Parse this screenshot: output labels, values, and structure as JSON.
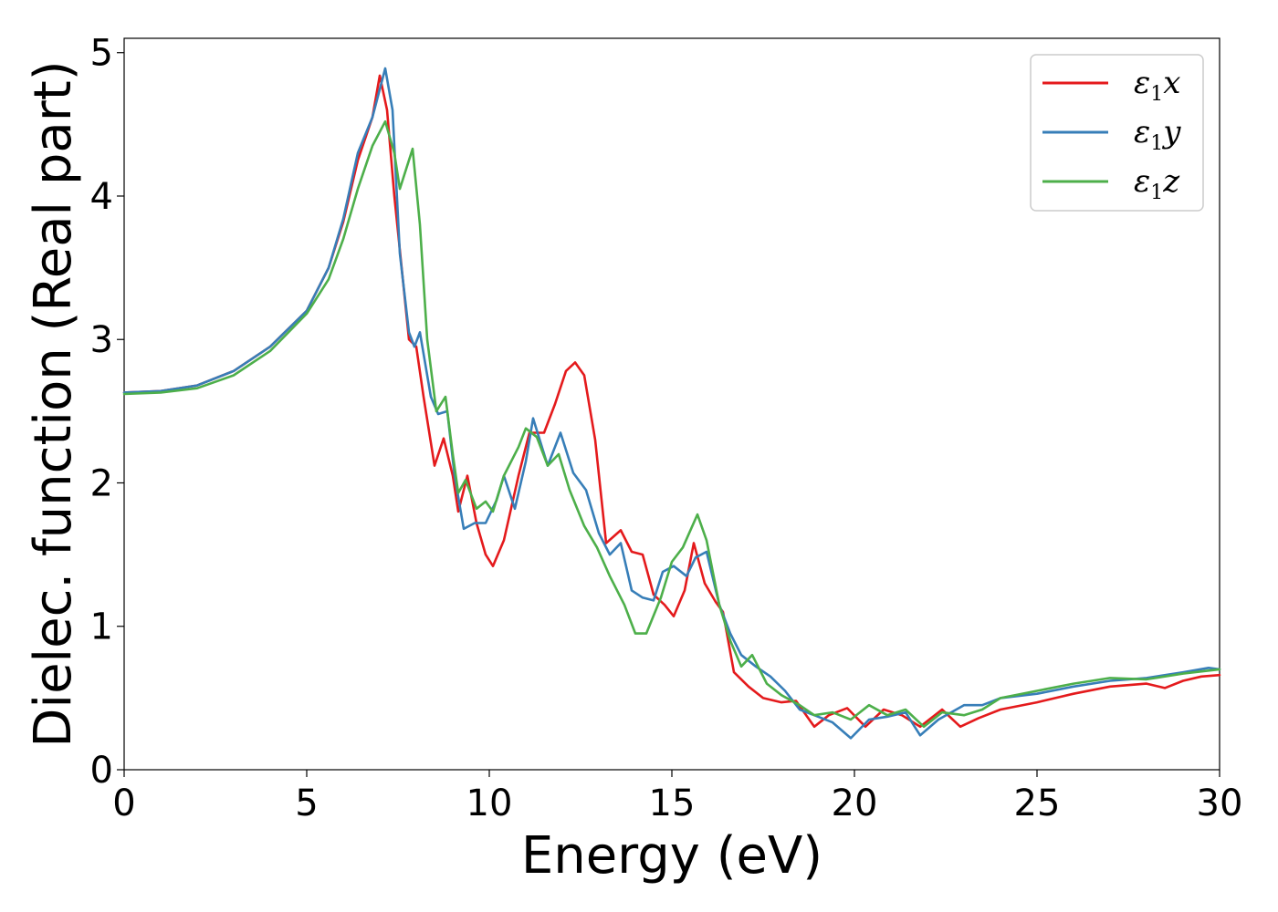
{
  "chart_data": {
    "type": "line",
    "title": "",
    "xlabel": "Energy (eV)",
    "ylabel": "Dielec. function (Real part)",
    "xlim": [
      0,
      30
    ],
    "ylim": [
      0,
      5.1
    ],
    "x_ticks": [
      0,
      5,
      10,
      15,
      20,
      25,
      30
    ],
    "y_ticks": [
      0,
      1,
      2,
      3,
      4,
      5
    ],
    "grid": false,
    "legend_position": "top-right",
    "series": [
      {
        "name": "ε1x",
        "legend_symbol": "ε",
        "legend_subscript": "1",
        "legend_suffix": "x",
        "color": "#e41a1c",
        "points": [
          [
            0,
            2.63
          ],
          [
            1,
            2.64
          ],
          [
            2,
            2.68
          ],
          [
            3,
            2.78
          ],
          [
            4,
            2.95
          ],
          [
            5,
            3.2
          ],
          [
            5.6,
            3.5
          ],
          [
            6,
            3.82
          ],
          [
            6.4,
            4.25
          ],
          [
            6.8,
            4.55
          ],
          [
            7.0,
            4.84
          ],
          [
            7.2,
            4.6
          ],
          [
            7.4,
            4.0
          ],
          [
            7.6,
            3.5
          ],
          [
            7.8,
            3.0
          ],
          [
            8.0,
            2.95
          ],
          [
            8.2,
            2.6
          ],
          [
            8.5,
            2.12
          ],
          [
            8.75,
            2.31
          ],
          [
            9.0,
            2.05
          ],
          [
            9.15,
            1.8
          ],
          [
            9.4,
            2.05
          ],
          [
            9.65,
            1.72
          ],
          [
            9.9,
            1.5
          ],
          [
            10.1,
            1.42
          ],
          [
            10.4,
            1.6
          ],
          [
            10.8,
            2.05
          ],
          [
            11.1,
            2.35
          ],
          [
            11.5,
            2.35
          ],
          [
            11.8,
            2.55
          ],
          [
            12.1,
            2.78
          ],
          [
            12.35,
            2.84
          ],
          [
            12.6,
            2.75
          ],
          [
            12.9,
            2.3
          ],
          [
            13.2,
            1.58
          ],
          [
            13.6,
            1.67
          ],
          [
            13.9,
            1.52
          ],
          [
            14.2,
            1.5
          ],
          [
            14.5,
            1.22
          ],
          [
            14.8,
            1.15
          ],
          [
            15.05,
            1.07
          ],
          [
            15.35,
            1.25
          ],
          [
            15.6,
            1.58
          ],
          [
            15.9,
            1.3
          ],
          [
            16.2,
            1.17
          ],
          [
            16.4,
            1.1
          ],
          [
            16.7,
            0.68
          ],
          [
            17.1,
            0.58
          ],
          [
            17.5,
            0.5
          ],
          [
            18.0,
            0.47
          ],
          [
            18.4,
            0.48
          ],
          [
            18.9,
            0.3
          ],
          [
            19.3,
            0.38
          ],
          [
            19.8,
            0.43
          ],
          [
            20.3,
            0.3
          ],
          [
            20.8,
            0.42
          ],
          [
            21.3,
            0.38
          ],
          [
            21.8,
            0.3
          ],
          [
            22.4,
            0.42
          ],
          [
            22.9,
            0.3
          ],
          [
            23.4,
            0.36
          ],
          [
            24,
            0.42
          ],
          [
            25,
            0.47
          ],
          [
            26,
            0.53
          ],
          [
            27,
            0.58
          ],
          [
            28,
            0.6
          ],
          [
            28.5,
            0.57
          ],
          [
            29,
            0.62
          ],
          [
            29.5,
            0.65
          ],
          [
            30,
            0.66
          ]
        ]
      },
      {
        "name": "ε1y",
        "legend_symbol": "ε",
        "legend_subscript": "1",
        "legend_suffix": "y",
        "color": "#377eb8",
        "points": [
          [
            0,
            2.63
          ],
          [
            1,
            2.64
          ],
          [
            2,
            2.68
          ],
          [
            3,
            2.78
          ],
          [
            4,
            2.95
          ],
          [
            5,
            3.2
          ],
          [
            5.6,
            3.5
          ],
          [
            6,
            3.84
          ],
          [
            6.4,
            4.3
          ],
          [
            6.8,
            4.55
          ],
          [
            7.15,
            4.89
          ],
          [
            7.35,
            4.6
          ],
          [
            7.55,
            3.6
          ],
          [
            7.8,
            3.05
          ],
          [
            7.95,
            2.95
          ],
          [
            8.1,
            3.05
          ],
          [
            8.4,
            2.6
          ],
          [
            8.6,
            2.48
          ],
          [
            8.85,
            2.5
          ],
          [
            9.05,
            2.05
          ],
          [
            9.3,
            1.68
          ],
          [
            9.6,
            1.72
          ],
          [
            9.9,
            1.72
          ],
          [
            10.2,
            1.88
          ],
          [
            10.4,
            2.05
          ],
          [
            10.7,
            1.82
          ],
          [
            11.0,
            2.15
          ],
          [
            11.2,
            2.45
          ],
          [
            11.6,
            2.12
          ],
          [
            11.95,
            2.35
          ],
          [
            12.3,
            2.07
          ],
          [
            12.65,
            1.95
          ],
          [
            13.0,
            1.65
          ],
          [
            13.3,
            1.5
          ],
          [
            13.6,
            1.58
          ],
          [
            13.9,
            1.25
          ],
          [
            14.2,
            1.2
          ],
          [
            14.5,
            1.18
          ],
          [
            14.75,
            1.38
          ],
          [
            15.05,
            1.42
          ],
          [
            15.4,
            1.35
          ],
          [
            15.65,
            1.48
          ],
          [
            15.95,
            1.52
          ],
          [
            16.3,
            1.15
          ],
          [
            16.6,
            0.95
          ],
          [
            16.9,
            0.8
          ],
          [
            17.3,
            0.72
          ],
          [
            17.7,
            0.65
          ],
          [
            18.1,
            0.55
          ],
          [
            18.5,
            0.42
          ],
          [
            18.9,
            0.38
          ],
          [
            19.4,
            0.33
          ],
          [
            19.9,
            0.22
          ],
          [
            20.4,
            0.35
          ],
          [
            20.9,
            0.37
          ],
          [
            21.4,
            0.4
          ],
          [
            21.8,
            0.24
          ],
          [
            22.3,
            0.35
          ],
          [
            23,
            0.45
          ],
          [
            23.5,
            0.45
          ],
          [
            24,
            0.5
          ],
          [
            25,
            0.53
          ],
          [
            26,
            0.58
          ],
          [
            27,
            0.62
          ],
          [
            28,
            0.64
          ],
          [
            29,
            0.68
          ],
          [
            29.7,
            0.71
          ],
          [
            30,
            0.7
          ]
        ]
      },
      {
        "name": "ε1z",
        "legend_symbol": "ε",
        "legend_subscript": "1",
        "legend_suffix": "z",
        "color": "#4daf4a",
        "points": [
          [
            0,
            2.62
          ],
          [
            1,
            2.63
          ],
          [
            2,
            2.66
          ],
          [
            3,
            2.75
          ],
          [
            4,
            2.92
          ],
          [
            5,
            3.18
          ],
          [
            5.6,
            3.42
          ],
          [
            6,
            3.7
          ],
          [
            6.4,
            4.05
          ],
          [
            6.8,
            4.35
          ],
          [
            7.15,
            4.52
          ],
          [
            7.4,
            4.3
          ],
          [
            7.55,
            4.05
          ],
          [
            7.8,
            4.25
          ],
          [
            7.9,
            4.33
          ],
          [
            8.1,
            3.8
          ],
          [
            8.3,
            3.0
          ],
          [
            8.55,
            2.5
          ],
          [
            8.8,
            2.6
          ],
          [
            9.0,
            2.2
          ],
          [
            9.15,
            1.93
          ],
          [
            9.35,
            2.02
          ],
          [
            9.65,
            1.82
          ],
          [
            9.9,
            1.87
          ],
          [
            10.1,
            1.8
          ],
          [
            10.4,
            2.05
          ],
          [
            10.8,
            2.25
          ],
          [
            11.0,
            2.38
          ],
          [
            11.3,
            2.32
          ],
          [
            11.6,
            2.12
          ],
          [
            11.9,
            2.2
          ],
          [
            12.2,
            1.95
          ],
          [
            12.6,
            1.7
          ],
          [
            12.95,
            1.55
          ],
          [
            13.3,
            1.35
          ],
          [
            13.7,
            1.15
          ],
          [
            14.0,
            0.95
          ],
          [
            14.3,
            0.95
          ],
          [
            14.7,
            1.2
          ],
          [
            15.0,
            1.45
          ],
          [
            15.3,
            1.55
          ],
          [
            15.7,
            1.78
          ],
          [
            15.95,
            1.6
          ],
          [
            16.3,
            1.15
          ],
          [
            16.6,
            0.9
          ],
          [
            16.9,
            0.72
          ],
          [
            17.2,
            0.8
          ],
          [
            17.6,
            0.6
          ],
          [
            18.0,
            0.52
          ],
          [
            18.5,
            0.45
          ],
          [
            18.9,
            0.38
          ],
          [
            19.4,
            0.4
          ],
          [
            19.9,
            0.35
          ],
          [
            20.4,
            0.45
          ],
          [
            20.9,
            0.38
          ],
          [
            21.4,
            0.42
          ],
          [
            21.9,
            0.3
          ],
          [
            22.4,
            0.4
          ],
          [
            23,
            0.38
          ],
          [
            23.5,
            0.42
          ],
          [
            24,
            0.5
          ],
          [
            25,
            0.55
          ],
          [
            26,
            0.6
          ],
          [
            27,
            0.64
          ],
          [
            28,
            0.63
          ],
          [
            29,
            0.67
          ],
          [
            30,
            0.7
          ]
        ]
      }
    ]
  }
}
